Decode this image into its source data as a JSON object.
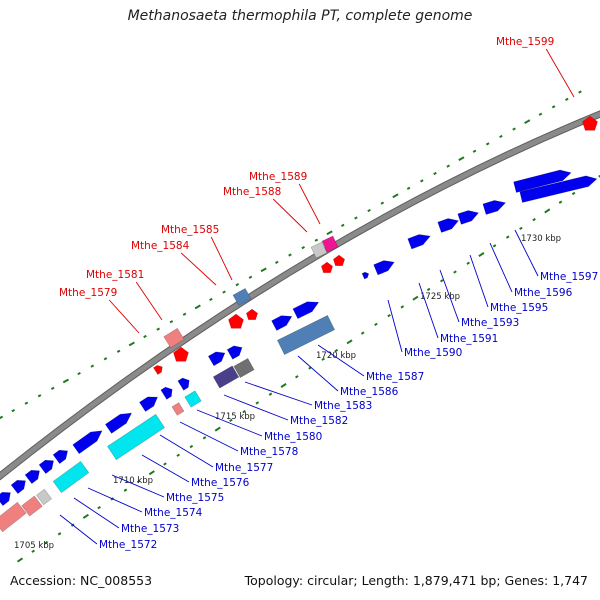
{
  "title": "Methanosaeta thermophila PT, complete genome",
  "footer": {
    "accession": "Accession: NC_008553",
    "stats": "Topology: circular; Length: 1,879,471 bp; Genes: 1,747"
  },
  "colors": {
    "backbone": "#8a8a8a",
    "tick": "#1e7a1e",
    "scale_text": "#222222",
    "label_blue": "#0000cc",
    "label_red": "#dd0000",
    "forward_gene": "#0000ee",
    "trna": "#ff0000",
    "pink_gene": "#f08080",
    "cyan_gene": "#00e5ee",
    "steel_gene": "#4f7fb5",
    "slate_gene": "#4a3f8a",
    "grey_gene": "#909090",
    "magenta_gene": "#ee1493"
  },
  "scale_labels": [
    "1705 kbp",
    "1710 kbp",
    "1715 kbp",
    "1720 kbp",
    "1725 kbp",
    "1730 kbp"
  ],
  "gene_labels_blue": [
    "Mthe_1572",
    "Mthe_1573",
    "Mthe_1574",
    "Mthe_1575",
    "Mthe_1576",
    "Mthe_1577",
    "Mthe_1578",
    "Mthe_1580",
    "Mthe_1582",
    "Mthe_1583",
    "Mthe_1586",
    "Mthe_1587",
    "Mthe_1590",
    "Mthe_1591",
    "Mthe_1593",
    "Mthe_1595",
    "Mthe_1596",
    "Mthe_1597"
  ],
  "gene_labels_red": [
    "Mthe_1579",
    "Mthe_1581",
    "Mthe_1584",
    "Mthe_1585",
    "Mthe_1588",
    "Mthe_1589",
    "Mthe_1599"
  ]
}
